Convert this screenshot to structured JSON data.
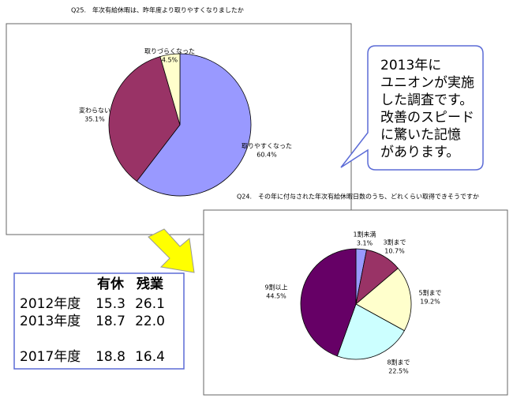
{
  "chart_data": [
    {
      "type": "pie",
      "title": "Q25.　年次有給休暇は、昨年度より取りやすくなりましたか",
      "categories": [
        "取りやすくなった",
        "変わらない",
        "取りづらくなった"
      ],
      "values": [
        60.4,
        35.1,
        4.5
      ],
      "value_labels": [
        "60.4%",
        "35.1%",
        "4.5%"
      ],
      "colors": [
        "#9999ff",
        "#993366",
        "#ffffcc"
      ]
    },
    {
      "type": "pie",
      "title": "Q24.　その年に付与された年次有給休暇日数のうち、どれくらい取得できそうですか",
      "categories": [
        "1割未満",
        "3割まで",
        "5割まで",
        "8割まで",
        "9割以上"
      ],
      "values": [
        3.1,
        10.7,
        19.2,
        22.5,
        44.5
      ],
      "value_labels": [
        "3.1%",
        "10.7%",
        "19.2%",
        "22.5%",
        "44.5%"
      ],
      "colors": [
        "#9999ff",
        "#993366",
        "#ffffcc",
        "#ccffff",
        "#660066"
      ]
    }
  ],
  "callout": {
    "lines": [
      {
        "text": "2013年に",
        "color": "#ff0000"
      },
      {
        "text": "ユニオンが実施",
        "color": "#000000"
      },
      {
        "text": "した調査です。",
        "color": "#000000"
      },
      {
        "text": "改善のスピード",
        "color": "#ff0000"
      },
      {
        "text": "に驚いた記憶",
        "color": "#000000"
      },
      {
        "text": "があります。",
        "color": "#000000"
      }
    ]
  },
  "table": {
    "headers": [
      "有休",
      "残業"
    ],
    "rows": [
      [
        "2012年度",
        "15.3",
        "26.1"
      ],
      [
        "2013年度",
        "18.7",
        "22.0"
      ],
      [
        "2017年度",
        "18.8",
        "16.4"
      ]
    ]
  }
}
